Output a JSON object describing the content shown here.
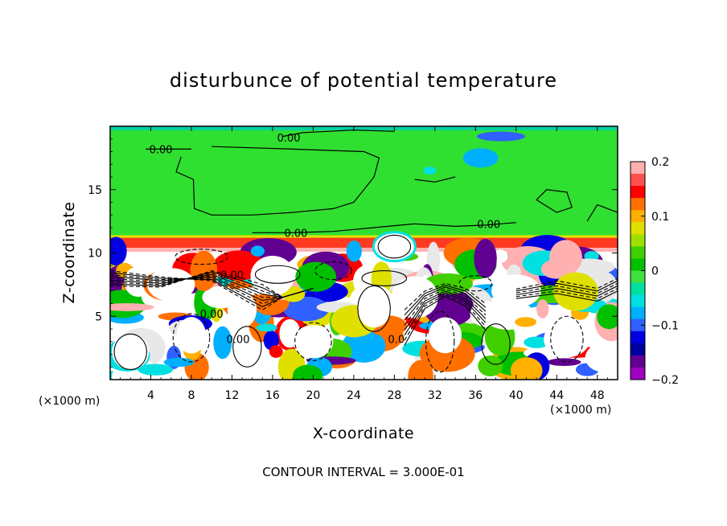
{
  "chart_data": {
    "type": "heatmap",
    "title": "disturbunce of potential temperature",
    "xlabel": "X-coordinate",
    "ylabel": "Z-coordinate",
    "x_unit": "(×1000 m)",
    "xlim": [
      0,
      50
    ],
    "ylim": [
      0,
      20
    ],
    "x_ticks": [
      4,
      8,
      12,
      16,
      20,
      24,
      28,
      32,
      36,
      40,
      44,
      48
    ],
    "y_ticks": [
      5,
      10,
      15
    ],
    "colorbar": {
      "range": [
        -0.2,
        0.2
      ],
      "tick_values": [
        0.2,
        0.1,
        0,
        -0.1,
        -0.2
      ],
      "tick_labels": [
        "0.2",
        "0.1",
        "0",
        "−0.1",
        "−0.2"
      ],
      "colors": [
        "#ffb0b0",
        "#ff5050",
        "#ff0000",
        "#ff7000",
        "#ffb000",
        "#e0e000",
        "#a0e000",
        "#40d000",
        "#00c000",
        "#40e040",
        "#00e0a0",
        "#00e0e0",
        "#00b0ff",
        "#3060ff",
        "#0000e0",
        "#0000a0",
        "#600090",
        "#a000c0"
      ]
    },
    "contour_labels": [
      {
        "text": "0.00",
        "x": 5.0,
        "y": 18.2
      },
      {
        "text": "0.00",
        "x": 17.6,
        "y": 19.1
      },
      {
        "text": "0.00",
        "x": 18.3,
        "y": 11.6
      },
      {
        "text": "0.00",
        "x": 37.3,
        "y": 12.3
      },
      {
        "text": "0.00",
        "x": 12.0,
        "y": 8.3
      },
      {
        "text": "0.00",
        "x": 10.0,
        "y": 5.2
      },
      {
        "text": "0.00",
        "x": 12.6,
        "y": 3.2
      },
      {
        "text": "0.0",
        "x": 28.2,
        "y": 3.2
      }
    ],
    "footer": "CONTOUR INTERVAL = 3.000E-01"
  },
  "colors": {
    "background": "#ffffff",
    "upper_field": "#30e030",
    "contour": "#000000"
  }
}
